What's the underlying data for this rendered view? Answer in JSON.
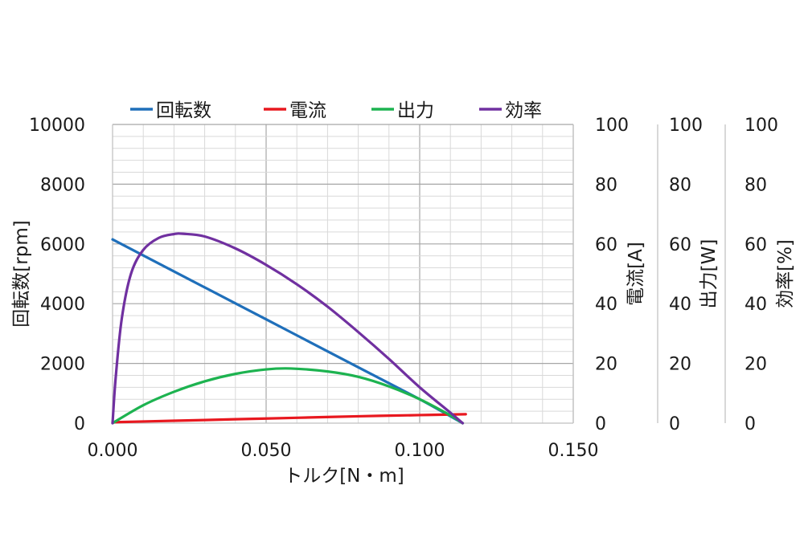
{
  "chart_data": {
    "type": "line",
    "title": "",
    "x_axis": {
      "label": "トルク[N・m]",
      "range": [
        0,
        0.15
      ],
      "major_ticks": [
        0,
        0.05,
        0.1,
        0.15
      ],
      "tick_labels": [
        "0.000",
        "0.050",
        "0.100",
        "0.150"
      ],
      "minor_step": 0.01
    },
    "y_axes": [
      {
        "id": "rpm",
        "label": "回転数[rpm]",
        "side": "left",
        "range": [
          0,
          10000
        ],
        "tick_labels": [
          "0",
          "2000",
          "4000",
          "6000",
          "8000",
          "10000"
        ]
      },
      {
        "id": "current",
        "label": "電流[A]",
        "side": "right",
        "range": [
          0,
          100
        ],
        "tick_labels": [
          "0",
          "20",
          "40",
          "60",
          "80",
          "100"
        ]
      },
      {
        "id": "power",
        "label": "出力[W]",
        "side": "right",
        "range": [
          0,
          100
        ],
        "tick_labels": [
          "0",
          "20",
          "40",
          "60",
          "80",
          "100"
        ]
      },
      {
        "id": "efficiency",
        "label": "効率[%]",
        "side": "right",
        "range": [
          0,
          100
        ],
        "tick_labels": [
          "0",
          "20",
          "40",
          "60",
          "80",
          "100"
        ]
      }
    ],
    "grid": {
      "major": true,
      "minor": true
    },
    "legend_position": "top",
    "series": [
      {
        "name": "回転数",
        "axis": "rpm",
        "color": "#1f6fba",
        "x": [
          0.0,
          0.02,
          0.04,
          0.06,
          0.08,
          0.1,
          0.114
        ],
        "y": [
          6150,
          5080,
          4010,
          2940,
          1870,
          800,
          0
        ]
      },
      {
        "name": "電流",
        "axis": "current",
        "color": "#e8181f",
        "x": [
          0.0,
          0.02,
          0.04,
          0.06,
          0.08,
          0.1,
          0.115
        ],
        "y": [
          0.3,
          0.8,
          1.3,
          1.8,
          2.3,
          2.7,
          3.0
        ]
      },
      {
        "name": "出力",
        "axis": "power",
        "color": "#1db350",
        "x": [
          0.0,
          0.01,
          0.02,
          0.03,
          0.04,
          0.05,
          0.058,
          0.07,
          0.08,
          0.09,
          0.1,
          0.11,
          0.114
        ],
        "y": [
          0.0,
          6.0,
          10.5,
          14.0,
          16.5,
          18.0,
          18.3,
          17.3,
          15.5,
          12.3,
          8.0,
          2.6,
          0.0
        ]
      },
      {
        "name": "効率",
        "axis": "efficiency",
        "color": "#7030a0",
        "x": [
          0.0,
          0.001,
          0.003,
          0.006,
          0.01,
          0.015,
          0.02,
          0.023,
          0.03,
          0.04,
          0.05,
          0.06,
          0.07,
          0.08,
          0.09,
          0.1,
          0.11,
          0.114
        ],
        "y": [
          0.0,
          15.0,
          35.0,
          50.0,
          58.0,
          62.0,
          63.3,
          63.4,
          62.5,
          58.5,
          53.0,
          46.5,
          39.0,
          30.5,
          21.5,
          12.0,
          3.5,
          0.0
        ]
      }
    ]
  }
}
